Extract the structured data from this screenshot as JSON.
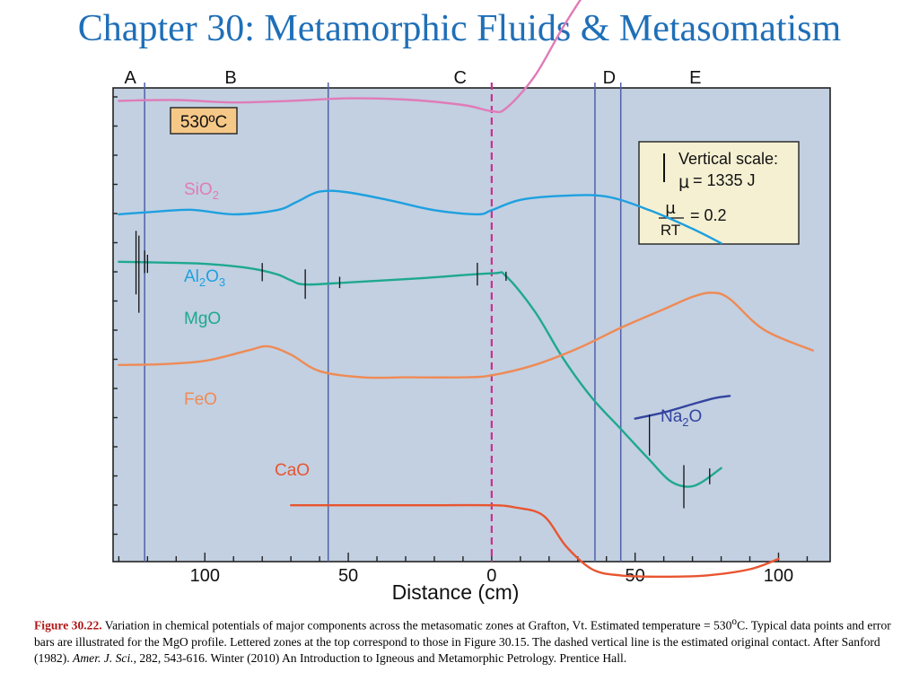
{
  "title": "Chapter 30: Metamorphic Fluids & Metasomatism",
  "chart_data": {
    "type": "line",
    "xlabel": "Distance (cm)",
    "x_ticks": [
      {
        "value": -100,
        "label": "100"
      },
      {
        "value": -50,
        "label": "50"
      },
      {
        "value": 0,
        "label": "0"
      },
      {
        "value": 50,
        "label": "50"
      },
      {
        "value": 100,
        "label": "100"
      }
    ],
    "xlim": [
      -132,
      118
    ],
    "zones": [
      "A",
      "B",
      "C",
      "D",
      "E"
    ],
    "zone_label_x": [
      -126,
      -91,
      -11,
      41,
      71
    ],
    "zone_boundaries": [
      -121,
      -57,
      36,
      45
    ],
    "original_contact_x": 0,
    "temperature_label": "530ºC",
    "scale_box": {
      "line1": "Vertical scale:",
      "line2": "= 1335 J",
      "mu": "μ",
      "frac_num": "μ",
      "frac_den": "RT",
      "line3": "= 0.2"
    },
    "series": [
      {
        "name": "SiO",
        "sub": "2",
        "color": "#e07bb8",
        "x": [
          -130,
          -110,
          -90,
          -70,
          -50,
          -30,
          -10,
          0,
          5,
          15,
          25,
          35,
          40,
          50,
          60,
          80,
          100,
          117
        ],
        "y": [
          26.0,
          26.2,
          25.6,
          26.0,
          26.6,
          26.3,
          25.0,
          23.5,
          24.2,
          32.0,
          44.0,
          54.5,
          57.0,
          57.0,
          57.0,
          57.0,
          57.0,
          57.0
        ]
      },
      {
        "name": "Al",
        "sub": "2",
        "name2": "O",
        "sub2": "3",
        "color": "#1ea0e0",
        "x": [
          -130,
          -120,
          -105,
          -90,
          -75,
          -68,
          -60,
          -50,
          -35,
          -20,
          -5,
          0,
          10,
          25,
          40,
          55,
          70,
          80
        ],
        "y": [
          -1.5,
          -1.0,
          -0.4,
          -1.5,
          -0.5,
          1.5,
          4.0,
          3.8,
          1.8,
          -0.5,
          -1.5,
          -0.5,
          2.0,
          3.0,
          2.8,
          -0.5,
          -5.0,
          -8.5
        ]
      },
      {
        "name": "MgO",
        "color": "#1ea890",
        "x": [
          -130,
          -115,
          -100,
          -85,
          -75,
          -70,
          -65,
          -50,
          -25,
          0,
          5,
          15,
          25,
          35,
          45,
          55,
          62,
          68,
          73,
          80
        ],
        "y": [
          -13.0,
          -13.2,
          -13.5,
          -14.5,
          -16.0,
          -17.5,
          -18.5,
          -18.0,
          -17.0,
          -15.8,
          -16.5,
          -25.0,
          -36.5,
          -46.0,
          -53.5,
          -61.0,
          -66.0,
          -67.5,
          -66.5,
          -63.0
        ]
      },
      {
        "name": "FeO",
        "color": "#ef8a55",
        "x": [
          -130,
          -115,
          -100,
          -85,
          -78,
          -70,
          -60,
          -45,
          -30,
          -10,
          0,
          15,
          30,
          45,
          60,
          70,
          77,
          83,
          95,
          112
        ],
        "y": [
          -38.0,
          -37.8,
          -37.0,
          -34.5,
          -33.5,
          -35.5,
          -39.5,
          -41.0,
          -41.0,
          -41.0,
          -40.5,
          -38.0,
          -34.0,
          -29.0,
          -24.5,
          -21.5,
          -20.5,
          -22.0,
          -29.5,
          -34.5
        ]
      },
      {
        "name": "Na",
        "sub": "2",
        "name2": "O",
        "color": "#3444a0",
        "x": [
          50,
          60,
          70,
          78,
          83
        ],
        "y": [
          -51.0,
          -49.5,
          -47.5,
          -46.0,
          -45.5
        ]
      },
      {
        "name": "CaO",
        "color": "#e85530",
        "x": [
          -70,
          -50,
          -20,
          0,
          8,
          18,
          26,
          35,
          45,
          60,
          75,
          90,
          100
        ],
        "y": [
          -72.0,
          -72.0,
          -72.0,
          -72.0,
          -72.5,
          -74.5,
          -82.0,
          -87.5,
          -89.0,
          -89.3,
          -89.0,
          -87.5,
          -85.0
        ]
      }
    ],
    "error_bars": [
      {
        "x": -124,
        "y": -13.2,
        "half": 14
      },
      {
        "x": -123,
        "y": -16.0,
        "half": 17
      },
      {
        "x": -121,
        "y": -13.0,
        "half": 5
      },
      {
        "x": -120,
        "y": -13.5,
        "half": 4
      },
      {
        "x": -80,
        "y": -15.5,
        "half": 4
      },
      {
        "x": -65,
        "y": -18.4,
        "half": 6.5
      },
      {
        "x": -53,
        "y": -18.0,
        "half": 2.5
      },
      {
        "x": -5,
        "y": -16.0,
        "half": 5
      },
      {
        "x": 5,
        "y": -16.5,
        "half": 2
      },
      {
        "x": 55,
        "y": -55.0,
        "half": 9
      },
      {
        "x": 67,
        "y": -67.5,
        "half": 9.5
      },
      {
        "x": 76,
        "y": -65.0,
        "half": 3.5
      }
    ]
  },
  "caption": {
    "fig_label": "Figure 30.22.",
    "part1": " Variation in chemical potentials of major components across the metasomatic zones at Grafton, Vt. Estimated temperature = 530",
    "deg": "o",
    "part2": "C. Typical data points and error bars are illustrated for the MgO profile. Lettered zones at the top correspond to those in Figure 30.15. The dashed vertical line is the estimated original contact. After Sanford (1982).  ",
    "journal": "Amer. J. Sci.",
    "part3": ", 282, 543-616. Winter (2010) An Introduction to Igneous and Metamorphic Petrology. Prentice Hall."
  }
}
